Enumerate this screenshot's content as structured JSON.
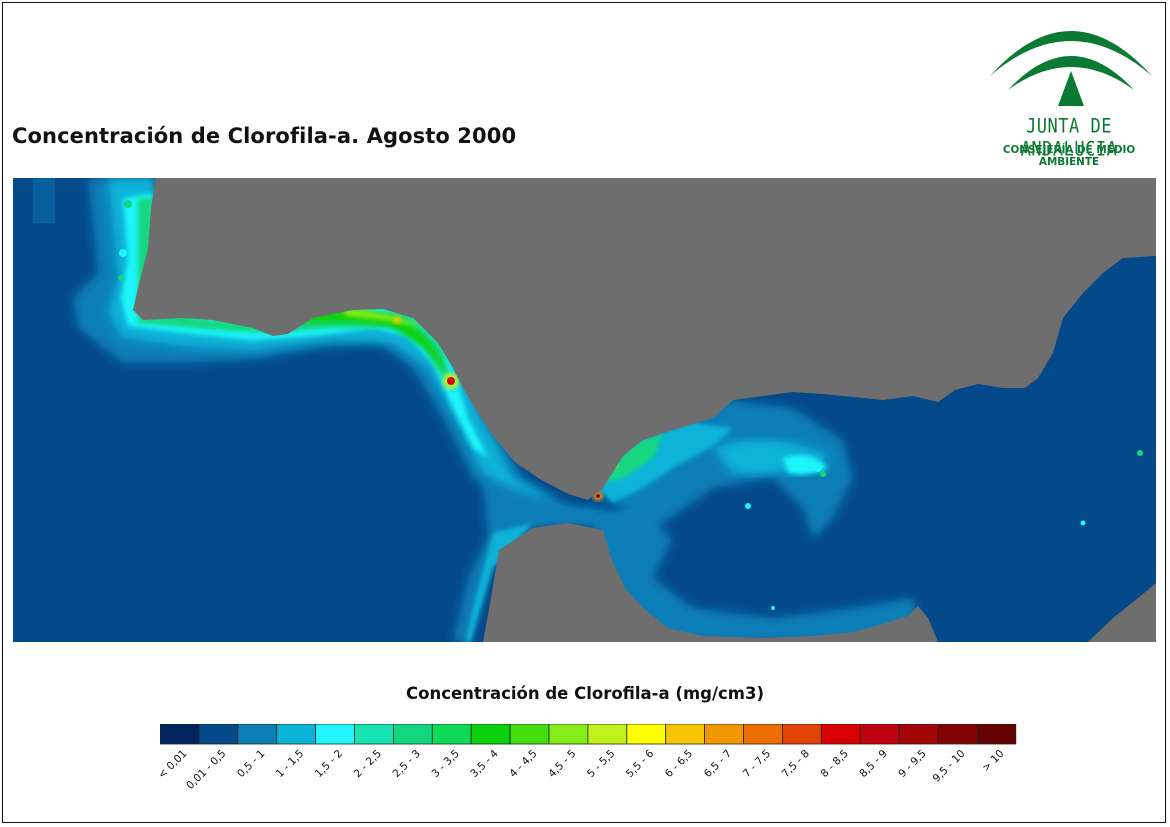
{
  "title": "Concentración de Clorofila-a. Agosto 2000",
  "logo": {
    "name": "JUNTA DE ANDALUCIA",
    "subtitle": "CONSEJERÍA DE MEDIO AMBIENTE",
    "color": "#0a7a32"
  },
  "map": {
    "land_color": "#6e6e6e",
    "deep_sea_color": "#04498a"
  },
  "legend": {
    "title": "Concentración de Clorofila-a (mg/cm3)",
    "classes": [
      {
        "label": "< 0,01",
        "color": "#03245f"
      },
      {
        "label": "0,01 - 0,5",
        "color": "#04498a"
      },
      {
        "label": "0,5 - 1",
        "color": "#0a7fb8"
      },
      {
        "label": "1 - 1,5",
        "color": "#09b4d8"
      },
      {
        "label": "1,5 - 2",
        "color": "#1ff5fb"
      },
      {
        "label": "2 - 2,5",
        "color": "#16e5b3"
      },
      {
        "label": "2,5 - 3",
        "color": "#12d780"
      },
      {
        "label": "3 - 3,5",
        "color": "#0ddb57"
      },
      {
        "label": "3,5 - 4",
        "color": "#0bd10c"
      },
      {
        "label": "4 - 4,5",
        "color": "#42dc0f"
      },
      {
        "label": "4,5 - 5",
        "color": "#86ec18"
      },
      {
        "label": "5 - 5,5",
        "color": "#bff21c"
      },
      {
        "label": "5,5 - 6",
        "color": "#ffff00"
      },
      {
        "label": "6 - 6,5",
        "color": "#f8c500"
      },
      {
        "label": "6,5 - 7",
        "color": "#f19700"
      },
      {
        "label": "7 - 7,5",
        "color": "#ec6e00"
      },
      {
        "label": "7,5 - 8",
        "color": "#e24405"
      },
      {
        "label": "8 - 8,5",
        "color": "#d80000"
      },
      {
        "label": "8,5 - 9",
        "color": "#c10010"
      },
      {
        "label": "9 - 9,5",
        "color": "#a30505"
      },
      {
        "label": "9,5 - 10",
        "color": "#830303"
      },
      {
        "label": "> 10",
        "color": "#650101"
      }
    ]
  }
}
